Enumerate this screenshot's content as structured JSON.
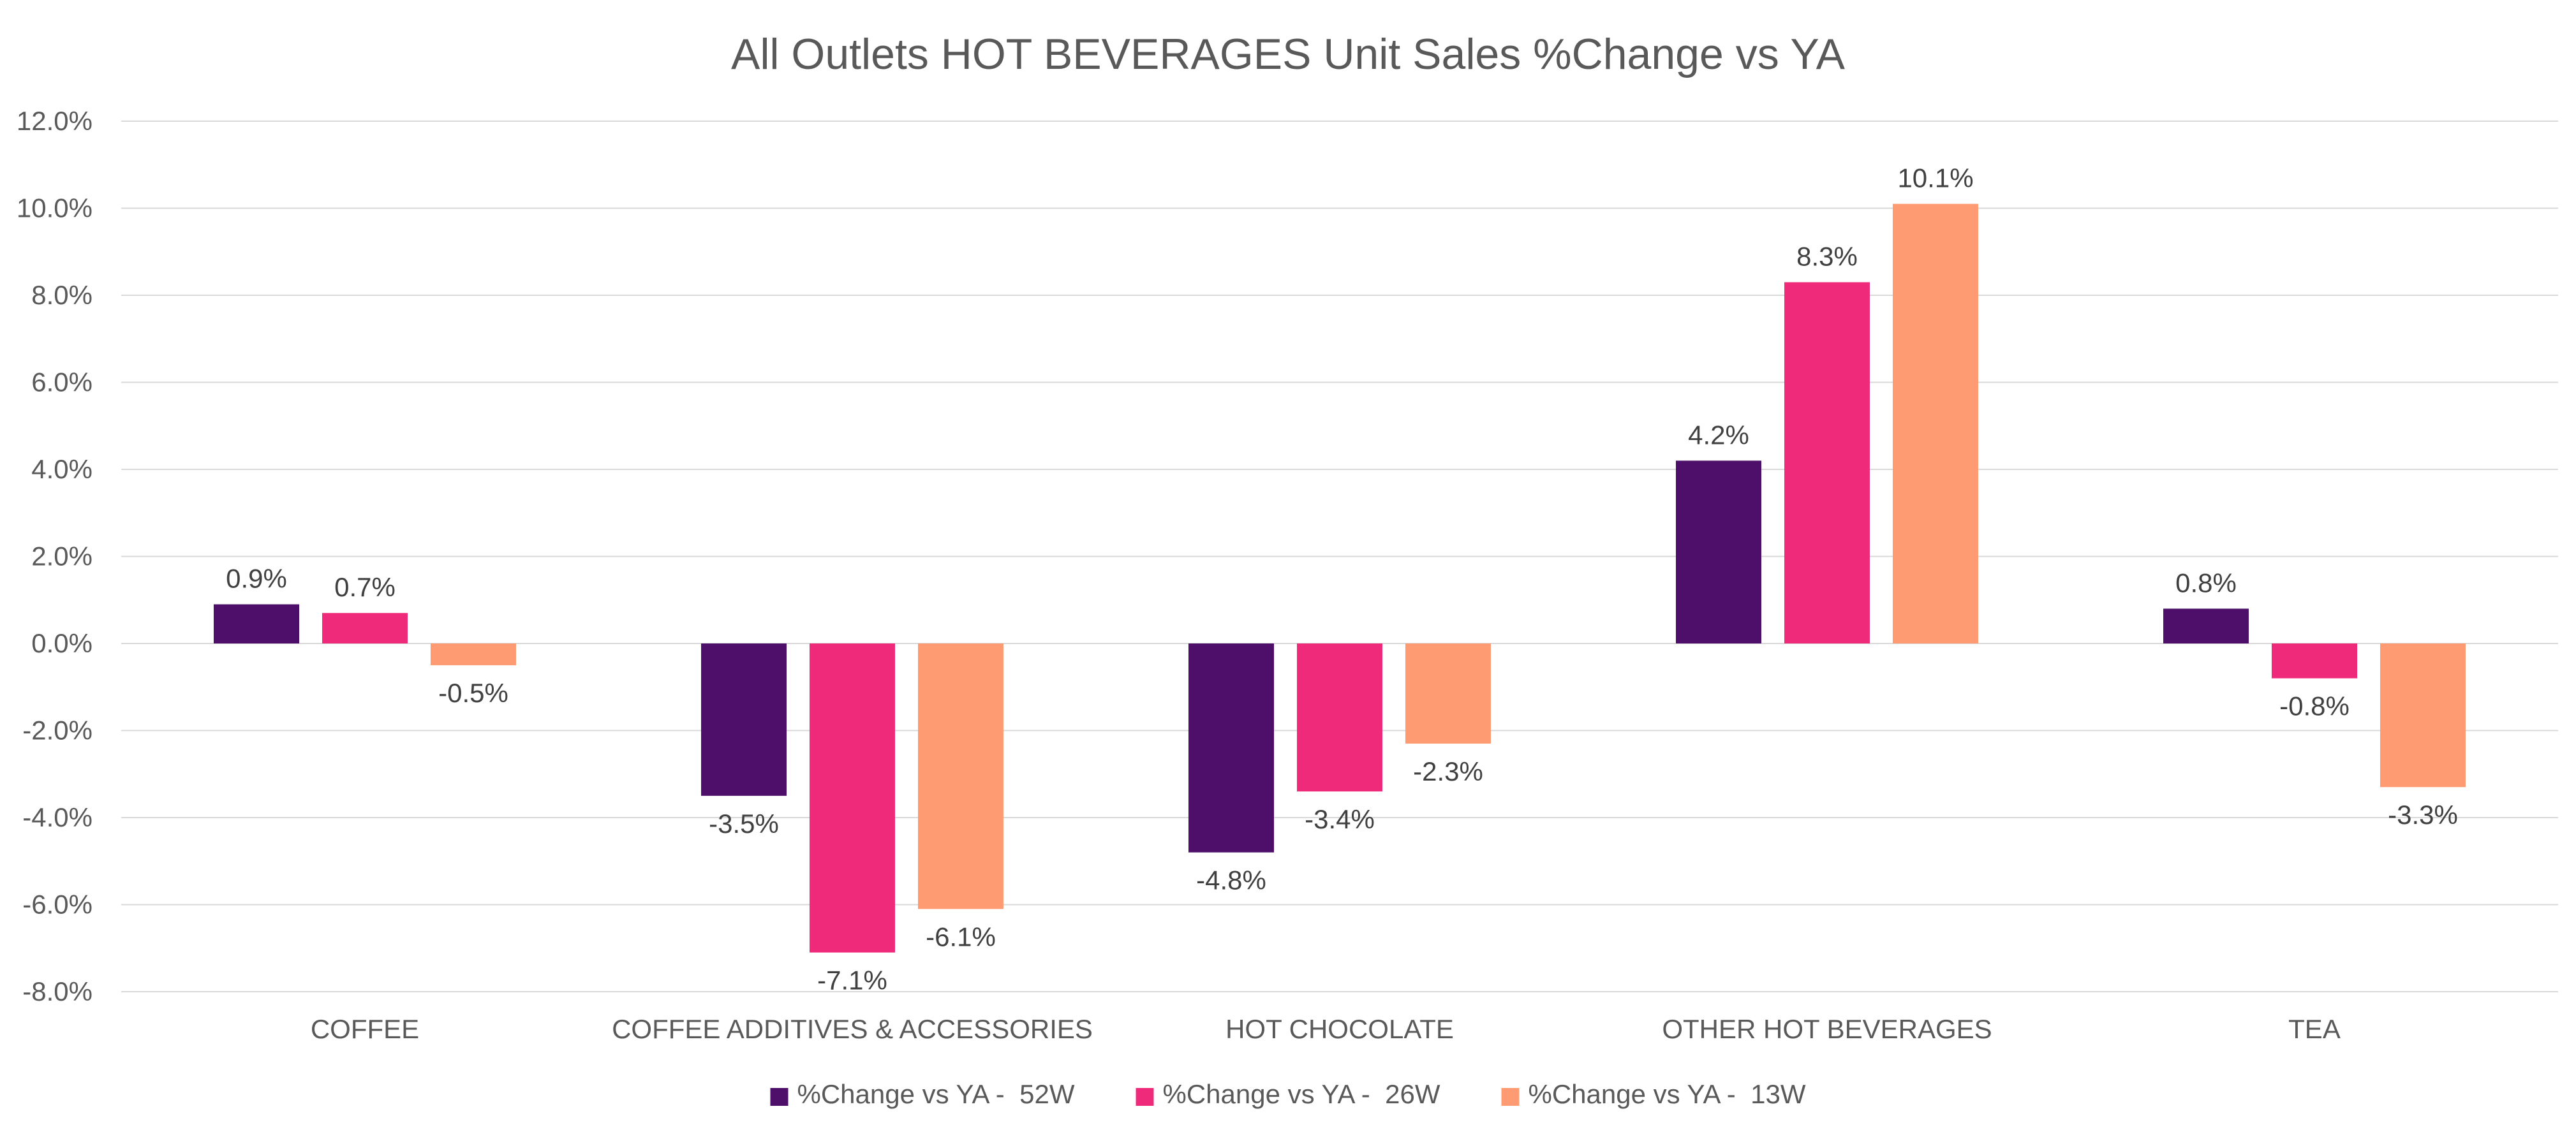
{
  "chart_data": {
    "type": "bar",
    "title": "All Outlets HOT BEVERAGES Unit Sales %Change vs YA",
    "xlabel": "",
    "ylabel": "",
    "ylim": [
      -8.0,
      12.0
    ],
    "ytick_step": 2.0,
    "ytick_format": "percent_1dp",
    "grid": true,
    "legend_position": "bottom",
    "categories": [
      "COFFEE",
      "COFFEE ADDITIVES & ACCESSORIES",
      "HOT CHOCOLATE",
      "OTHER HOT BEVERAGES",
      "TEA"
    ],
    "series": [
      {
        "name": "%Change vs YA -  52W",
        "color": "#4e0f6a",
        "values": [
          0.9,
          -3.5,
          -4.8,
          4.2,
          0.8
        ]
      },
      {
        "name": "%Change vs YA -  26W",
        "color": "#ef2a7b",
        "values": [
          0.7,
          -7.1,
          -3.4,
          8.3,
          -0.8
        ]
      },
      {
        "name": "%Change vs YA -  13W",
        "color": "#ff9b72",
        "values": [
          -0.5,
          -6.1,
          -2.3,
          10.1,
          -3.3
        ]
      }
    ]
  }
}
